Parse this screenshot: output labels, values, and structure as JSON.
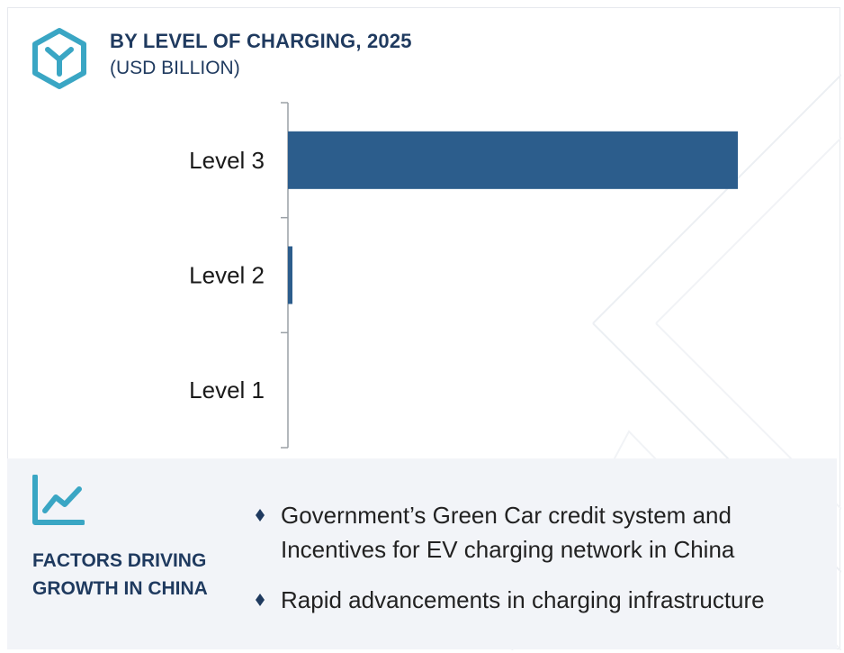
{
  "header": {
    "title": "BY LEVEL OF CHARGING, 2025",
    "subtitle": "(USD BILLION)"
  },
  "chart_data": {
    "type": "bar",
    "orientation": "horizontal",
    "title": "BY LEVEL OF CHARGING, 2025",
    "subtitle": "(USD BILLION)",
    "categories": [
      "Level 3",
      "Level 2",
      "Level 1"
    ],
    "values": [
      100,
      1,
      0
    ],
    "xlim": [
      0,
      120
    ],
    "grid": false,
    "legend": "none",
    "bar_color": "#2c5d8c"
  },
  "factors": {
    "title": "FACTORS DRIVING GROWTH IN CHINA",
    "items": [
      "Government’s Green Car credit system  and Incentives for EV charging network in China",
      "Rapid advancements in charging infrastructure"
    ]
  },
  "colors": {
    "accent": "#3aa6c4",
    "bar": "#2c5d8c",
    "title": "#1f3a5f",
    "panel": "#f2f4f8"
  },
  "icons": {
    "logo": "cube-y-hexagon-icon",
    "trend": "line-chart-trend-icon",
    "bullet": "diamond-bullet-icon"
  }
}
